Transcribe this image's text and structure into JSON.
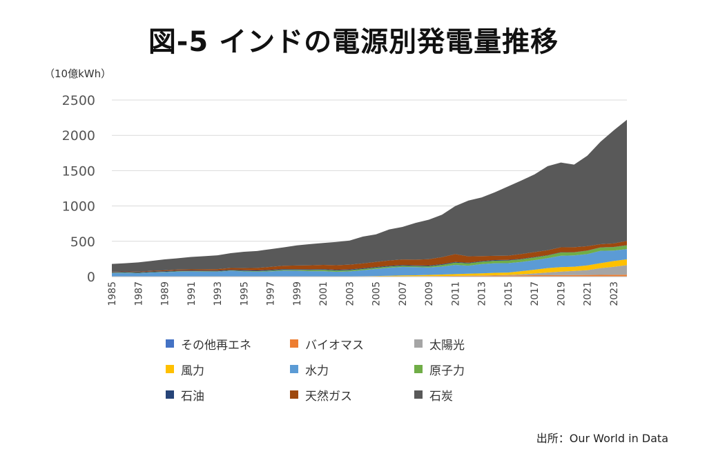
{
  "page": {
    "title": "図-5 インドの電源別発電量推移",
    "unit": "（10億kWh）",
    "source": "出所：Our World in Data"
  },
  "chart_data": {
    "type": "area",
    "stacked": true,
    "title": "図-5 インドの電源別発電量推移",
    "ylabel": "（10億kWh）",
    "xlabel": "",
    "ylim": [
      0,
      2500
    ],
    "yticks": [
      0,
      500,
      1000,
      1500,
      2000,
      2500
    ],
    "grid": true,
    "legend_position": "bottom",
    "x": [
      1985,
      1986,
      1987,
      1988,
      1989,
      1990,
      1991,
      1992,
      1993,
      1994,
      1995,
      1996,
      1997,
      1998,
      1999,
      2000,
      2001,
      2002,
      2003,
      2004,
      2005,
      2006,
      2007,
      2008,
      2009,
      2010,
      2011,
      2012,
      2013,
      2014,
      2015,
      2016,
      2017,
      2018,
      2019,
      2020,
      2021,
      2022,
      2023,
      2024
    ],
    "xtick_labels": [
      "1985",
      "1987",
      "1989",
      "1991",
      "1993",
      "1995",
      "1997",
      "1999",
      "2001",
      "2003",
      "2005",
      "2007",
      "2009",
      "2011",
      "2013",
      "2015",
      "2017",
      "2019",
      "2021",
      "2023"
    ],
    "series": [
      {
        "name": "その他再エネ",
        "color": "#4472c4",
        "values": [
          0,
          0,
          0,
          0,
          0,
          0,
          0,
          0,
          0,
          0,
          0,
          0,
          0,
          0,
          0,
          0,
          0,
          0,
          0,
          0,
          0,
          0,
          0,
          0,
          0,
          0,
          0,
          0,
          0,
          0,
          0,
          1,
          1,
          1,
          1,
          1,
          1,
          2,
          2,
          2
        ]
      },
      {
        "name": "バイオマス",
        "color": "#ed7d31",
        "values": [
          0,
          0,
          0,
          0,
          0,
          0,
          0,
          0,
          0,
          0,
          0,
          0,
          0,
          1,
          1,
          1,
          1,
          2,
          2,
          2,
          3,
          4,
          5,
          6,
          7,
          9,
          10,
          11,
          13,
          15,
          16,
          17,
          18,
          19,
          20,
          21,
          22,
          23,
          24,
          25
        ]
      },
      {
        "name": "太陽光",
        "color": "#a5a5a5",
        "values": [
          0,
          0,
          0,
          0,
          0,
          0,
          0,
          0,
          0,
          0,
          0,
          0,
          0,
          0,
          0,
          0,
          0,
          0,
          0,
          0,
          0,
          0,
          0,
          0,
          0,
          0,
          1,
          2,
          3,
          5,
          7,
          14,
          26,
          39,
          50,
          58,
          68,
          95,
          113,
          135
        ]
      },
      {
        "name": "風力",
        "color": "#ffc000",
        "values": [
          0,
          0,
          0,
          0,
          0,
          0,
          0,
          0,
          0,
          0,
          1,
          1,
          1,
          1,
          2,
          2,
          2,
          2,
          3,
          4,
          6,
          8,
          12,
          14,
          17,
          20,
          24,
          28,
          30,
          34,
          34,
          45,
          53,
          62,
          63,
          60,
          68,
          70,
          82,
          83
        ]
      },
      {
        "name": "水力",
        "color": "#5b9bd5",
        "values": [
          50,
          53,
          48,
          57,
          62,
          70,
          72,
          69,
          70,
          82,
          72,
          68,
          74,
          82,
          80,
          74,
          74,
          64,
          69,
          84,
          100,
          114,
          120,
          114,
          105,
          114,
          131,
          114,
          131,
          135,
          133,
          130,
          135,
          140,
          162,
          160,
          160,
          175,
          148,
          145
        ]
      },
      {
        "name": "原子力",
        "color": "#70ad47",
        "values": [
          5,
          5,
          5,
          5,
          5,
          6,
          5,
          7,
          5,
          5,
          7,
          8,
          10,
          11,
          12,
          17,
          19,
          19,
          18,
          17,
          17,
          17,
          16,
          15,
          17,
          23,
          32,
          33,
          34,
          36,
          38,
          38,
          38,
          38,
          45,
          43,
          47,
          46,
          48,
          52
        ]
      },
      {
        "name": "石油",
        "color": "#264478",
        "values": [
          10,
          10,
          10,
          10,
          10,
          10,
          10,
          10,
          10,
          10,
          11,
          11,
          11,
          11,
          10,
          10,
          10,
          10,
          10,
          10,
          10,
          10,
          10,
          10,
          10,
          10,
          10,
          9,
          9,
          9,
          9,
          7,
          6,
          5,
          4,
          3,
          3,
          3,
          3,
          3
        ]
      },
      {
        "name": "天然ガス",
        "color": "#9e480e",
        "values": [
          5,
          6,
          8,
          10,
          12,
          14,
          16,
          18,
          21,
          25,
          30,
          35,
          42,
          48,
          52,
          56,
          60,
          64,
          68,
          70,
          72,
          75,
          80,
          82,
          90,
          100,
          110,
          90,
          70,
          60,
          60,
          68,
          70,
          70,
          70,
          70,
          62,
          45,
          50,
          60
        ]
      },
      {
        "name": "石炭",
        "color": "#595959",
        "values": [
          110,
          115,
          130,
          140,
          155,
          160,
          175,
          185,
          195,
          210,
          230,
          240,
          250,
          260,
          285,
          300,
          310,
          330,
          340,
          380,
          390,
          440,
          460,
          520,
          560,
          600,
          680,
          790,
          830,
          900,
          980,
          1040,
          1100,
          1190,
          1200,
          1170,
          1280,
          1450,
          1600,
          1715
        ]
      }
    ]
  }
}
